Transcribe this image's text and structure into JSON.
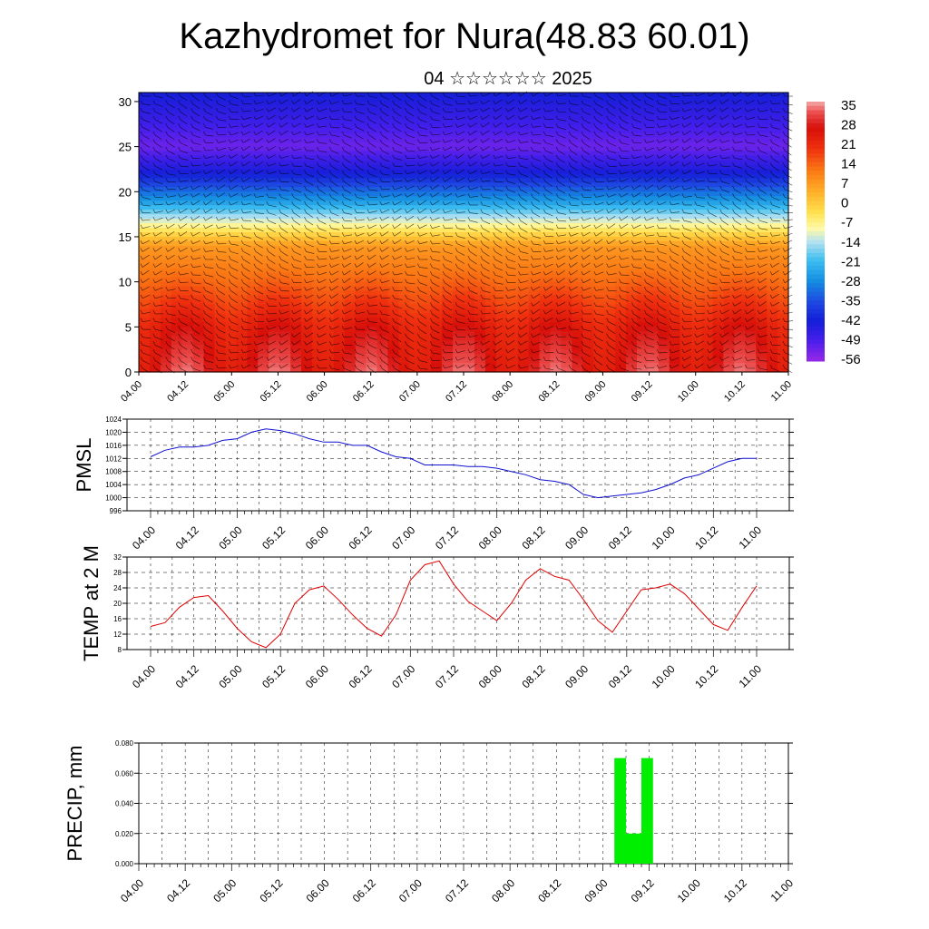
{
  "title": "Kazhydromet for Nura(48.83 60.01)",
  "subtitle": "04 ☆☆☆☆☆☆ 2025",
  "x_ticks": [
    "04.00",
    "04.12",
    "05.00",
    "05.12",
    "06.00",
    "06.12",
    "07.00",
    "07.12",
    "08.00",
    "08.12",
    "09.00",
    "09.12",
    "10.00",
    "10.12",
    "11.00"
  ],
  "colors": {
    "pmsl_line": "#1010d0",
    "temp_line": "#e00000",
    "precip_bar": "#00ee00",
    "grid": "#000000"
  },
  "colorbar": {
    "labels": [
      "35",
      "28",
      "21",
      "14",
      "7",
      "0",
      "-7",
      "-14",
      "-21",
      "-28",
      "-35",
      "-42",
      "-49",
      "-56"
    ]
  },
  "chart_data": [
    {
      "type": "heatmap",
      "name": "vertical temperature/wind cross-section",
      "ylim": [
        0,
        31
      ],
      "yticks": [
        "0",
        "5",
        "10",
        "15",
        "20",
        "25",
        "30"
      ],
      "values_range": [
        -60,
        38
      ],
      "level_temp_profile": {
        "heights_km": [
          0,
          5,
          10,
          14,
          16,
          19,
          22,
          25,
          28,
          31
        ],
        "temps": [
          30,
          25,
          14,
          7,
          -7,
          -28,
          -45,
          -56,
          -50,
          -45
        ]
      }
    },
    {
      "type": "line",
      "ylabel": "PMSL",
      "ylim": [
        996,
        1024
      ],
      "yticks": [
        "996",
        "1000",
        "1004",
        "1008",
        "1012",
        "1016",
        "1020",
        "1024"
      ],
      "x": [
        0,
        2,
        4,
        6,
        8,
        10,
        12,
        14,
        16,
        18,
        20,
        22,
        24,
        26,
        28,
        30,
        32,
        34,
        36,
        38,
        40,
        42,
        44,
        46,
        48,
        50,
        52,
        54,
        56,
        58,
        60,
        62,
        64,
        66,
        68,
        70,
        72,
        74,
        76,
        78,
        80,
        82,
        84
      ],
      "values": [
        1012.5,
        1014.5,
        1015.5,
        1015.5,
        1016,
        1017.5,
        1018,
        1020,
        1021,
        1020.5,
        1019.5,
        1018,
        1017,
        1017,
        1016,
        1016,
        1014,
        1012.5,
        1012,
        1010,
        1010,
        1010,
        1009.5,
        1009.5,
        1009,
        1008,
        1007,
        1005.5,
        1005,
        1004,
        1001,
        1000,
        1000.5,
        1001,
        1001.5,
        1002.5,
        1004,
        1006,
        1007,
        1009,
        1011,
        1012,
        1012
      ]
    },
    {
      "type": "line",
      "ylabel": "TEMP at 2 M",
      "ylim": [
        8,
        32
      ],
      "yticks": [
        "8",
        "12",
        "16",
        "20",
        "24",
        "28",
        "32"
      ],
      "x": [
        0,
        2,
        4,
        6,
        8,
        10,
        12,
        14,
        16,
        18,
        20,
        22,
        24,
        26,
        28,
        30,
        32,
        34,
        36,
        38,
        40,
        42,
        44,
        46,
        48,
        50,
        52,
        54,
        56,
        58,
        60,
        62,
        64,
        66,
        68,
        70,
        72,
        74,
        76,
        78,
        80,
        82,
        84
      ],
      "values": [
        14,
        15,
        19,
        21.5,
        22,
        18,
        13.5,
        10,
        8.5,
        12,
        20,
        23.5,
        24.5,
        21,
        17,
        13.5,
        11.5,
        17,
        26,
        30,
        31,
        25,
        20.5,
        18,
        15.5,
        20,
        26,
        29,
        27,
        26,
        21,
        15.5,
        12.5,
        18,
        23.5,
        24,
        25,
        22.5,
        18.5,
        14.5,
        13,
        19,
        24.5
      ]
    },
    {
      "type": "bar",
      "ylabel": "PRECIP, mm",
      "ylim": [
        0,
        0.08
      ],
      "yticks": [
        "0.000",
        "0.020",
        "0.040",
        "0.060",
        "0.080"
      ],
      "bars": [
        {
          "x_start": 61.5,
          "x_end": 63,
          "value": 0.07
        },
        {
          "x_start": 63,
          "x_end": 65,
          "value": 0.02
        },
        {
          "x_start": 65,
          "x_end": 66.5,
          "value": 0.07
        }
      ]
    }
  ]
}
